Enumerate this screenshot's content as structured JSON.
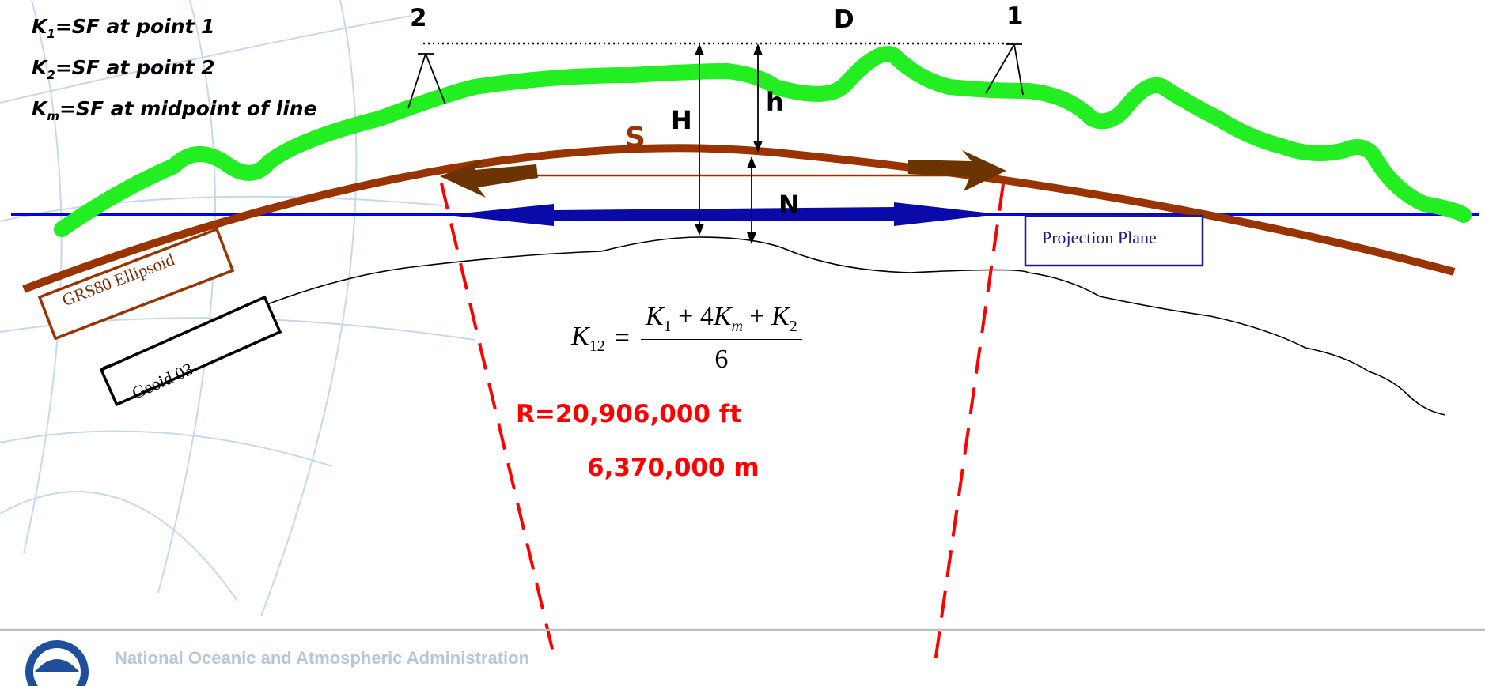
{
  "legend": {
    "k1": {
      "symbol": "K",
      "sub": "1",
      "text": "=SF at point 1"
    },
    "k2": {
      "symbol": "K",
      "sub": "2",
      "text": "=SF at point 2"
    },
    "km": {
      "symbol": "K",
      "sub": "m",
      "text": "=SF at midpoint of line"
    }
  },
  "points": {
    "point2": "2",
    "point1": "1",
    "distance": "D"
  },
  "labels": {
    "h_small": "h",
    "H_big": "H",
    "S": "S",
    "N": "N",
    "projection_plane": "Projection Plane",
    "ellipsoid": "GRS80 Ellipsoid",
    "geoid": "Geoid 03"
  },
  "formula": {
    "lhs": "K",
    "lhs_sub": "12",
    "eq": "=",
    "num_parts": [
      "K",
      "1",
      " + 4",
      "K",
      "m",
      " + ",
      "K",
      "2"
    ],
    "denominator": "6"
  },
  "radius": {
    "feet": "R=20,906,000 ft",
    "meters": "6,370,000 m"
  },
  "footer": {
    "org": "National Oceanic and Atmospheric Administration"
  },
  "colors": {
    "terrain": "#22ee22",
    "ellipsoid": "#993300",
    "projection_plane": "#0000ee",
    "radius_lines": "#ff0000",
    "arrow_S": "#6b3400",
    "arrow_N": "#0a0aa8",
    "globe_grid": "#c6d9ec"
  }
}
